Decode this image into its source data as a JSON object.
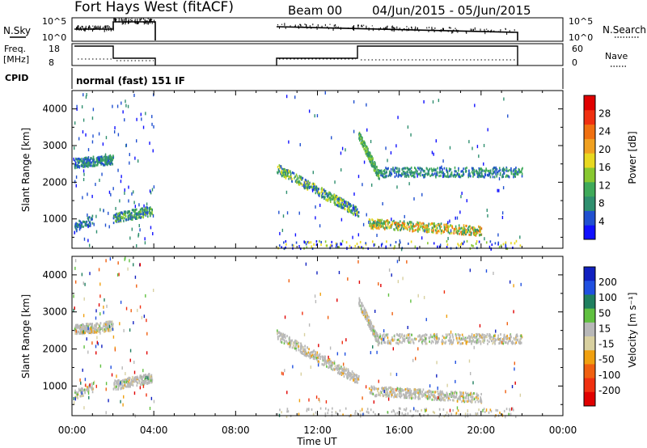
{
  "header": {
    "title": "Fort Hays West (fitACF)",
    "beam": "Beam 00",
    "date_range": "04/Jun/2015 - 05/Jun/2015"
  },
  "info": {
    "nsky_label": "N.Sky",
    "nsky_ticks": [
      "10^5",
      "10^0"
    ],
    "nsearch_label": "N.Search",
    "nsearch_ticks": [
      "10^5",
      "10^0"
    ],
    "freq_label": "Freq.",
    "freq_unit": "[MHz]",
    "freq_ticks": [
      "18",
      "8"
    ],
    "nave_label": "Nave",
    "nave_ticks": [
      "60",
      "0"
    ],
    "cpid_label": "CPID",
    "cpid_value": "normal (fast) 151 IF"
  },
  "colors": {
    "power": [
      "#1010ff",
      "#2050d0",
      "#2f8f6f",
      "#3faa5a",
      "#88c830",
      "#e8d820",
      "#f0a020",
      "#f07010",
      "#f03010",
      "#e00000"
    ],
    "velocity": [
      "#1020c0",
      "#2050e0",
      "#1f7f5f",
      "#60c040",
      "#b8b8b8",
      "#d8d0a0",
      "#f0a010",
      "#f06010",
      "#f03010",
      "#e00000"
    ]
  },
  "chart_data": [
    {
      "type": "heatmap",
      "name": "power",
      "ylabel": "Slant Range [km]",
      "yticks": [
        "1000",
        "2000",
        "3000",
        "4000"
      ],
      "ylim": [
        200,
        4500
      ],
      "xlim": [
        0,
        24
      ],
      "colorbar_label": "Power [dB]",
      "colorbar_ticks": [
        "4",
        "8",
        "12",
        "16",
        "20",
        "24",
        "28"
      ],
      "data_available_hours": [
        [
          0,
          4
        ],
        [
          10,
          22
        ]
      ]
    },
    {
      "type": "heatmap",
      "name": "velocity",
      "ylabel": "Slant Range [km]",
      "yticks": [
        "1000",
        "2000",
        "3000",
        "4000"
      ],
      "ylim": [
        200,
        4500
      ],
      "xlim": [
        0,
        24
      ],
      "colorbar_label": "Velocity [m s⁻¹]",
      "colorbar_ticks": [
        "200",
        "100",
        "50",
        "15",
        "-15",
        "-50",
        "-100",
        "-200"
      ],
      "xlabel": "Time UT",
      "xticks": [
        "00:00",
        "04:00",
        "08:00",
        "12:00",
        "16:00",
        "20:00",
        "00:00"
      ]
    }
  ]
}
